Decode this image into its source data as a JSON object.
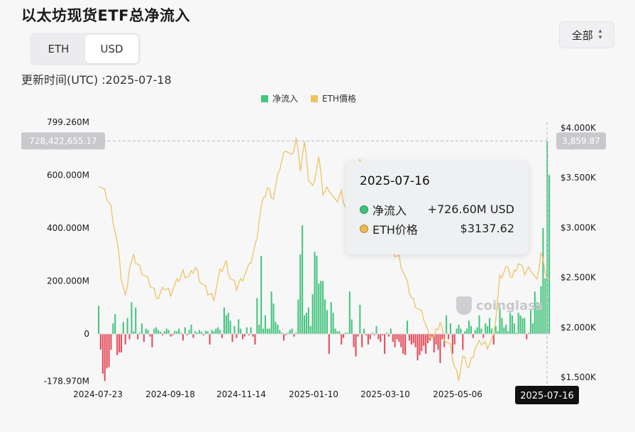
{
  "title": "以太坊现货ETF总净流入",
  "toggle": {
    "options": [
      "ETH",
      "USD"
    ],
    "selected": "USD"
  },
  "updated_text": "更新时间(UTC) :2025-07-18",
  "range_select": {
    "value": "全部",
    "icon": "chevron-up-down-icon"
  },
  "watermark": "coinglass",
  "tooltip": {
    "date": "2025-07-16",
    "rows": [
      {
        "label": "净流入",
        "value": "+726.60M USD",
        "color": "#3ec27a"
      },
      {
        "label": "ETH价格",
        "value": "$3137.62",
        "color": "#eeb94f"
      }
    ]
  },
  "chart_data": {
    "type": "bar",
    "legend": [
      {
        "name": "净流入",
        "color": "#46c57f"
      },
      {
        "name": "ETH價格",
        "color": "#efc262"
      }
    ],
    "left_axis_ticks": [
      "799.260M",
      "600.000M",
      "400.000M",
      "200.000M",
      "0",
      "-178.970M"
    ],
    "left_axis_values": [
      799.26,
      600,
      400,
      200,
      0,
      -178.97
    ],
    "right_axis_ticks": [
      "$4.000K",
      "$3.500K",
      "$3.000K",
      "$2.500K",
      "$2.000K",
      "$1.500K"
    ],
    "right_axis_values": [
      4000,
      3500,
      3000,
      2500,
      2000,
      1500
    ],
    "x_tick_labels": [
      "2024-07-23",
      "2024-09-18",
      "2024-11-14",
      "2025-01-10",
      "2025-03-10",
      "2025-05-06",
      "2025-07-16"
    ],
    "crosshair": {
      "left_value": "728,422,655.17",
      "right_value": "3,859.87",
      "x_label": "2025-07-16"
    },
    "net_flow_musd": [
      106,
      -59,
      -150,
      -178,
      -130,
      -125,
      -60,
      40,
      75,
      -80,
      -70,
      -70,
      45,
      -40,
      60,
      -20,
      120,
      10,
      100,
      -20,
      5,
      40,
      -30,
      20,
      15,
      -10,
      -50,
      20,
      25,
      15,
      8,
      -5,
      10,
      20,
      15,
      -10,
      -5,
      12,
      10,
      20,
      5,
      -25,
      25,
      -5,
      15,
      35,
      -15,
      10,
      5,
      15,
      8,
      -5,
      12,
      10,
      -40,
      15,
      10,
      20,
      25,
      15,
      -15,
      100,
      70,
      80,
      50,
      -30,
      30,
      -15,
      55,
      20,
      -20,
      -10,
      25,
      -5,
      25,
      -10,
      -40,
      135,
      35,
      295,
      20,
      70,
      20,
      20,
      160,
      115,
      45,
      35,
      15,
      5,
      -25,
      -5,
      5,
      15,
      20,
      -10,
      5,
      130,
      300,
      410,
      70,
      80,
      100,
      30,
      150,
      310,
      295,
      190,
      200,
      200,
      130,
      90,
      -75,
      120,
      80,
      20,
      10,
      10,
      -40,
      -15,
      5,
      5,
      160,
      55,
      -50,
      -85,
      -10,
      110,
      -50,
      20,
      -5,
      -40,
      -20,
      5,
      -5,
      30,
      -20,
      -30,
      -5,
      -75,
      5,
      -10,
      20,
      -30,
      -50,
      -20,
      -30,
      -50,
      -75,
      -80,
      50,
      -25,
      -40,
      -35,
      -50,
      -100,
      -80,
      -65,
      -45,
      -75,
      -35,
      -25,
      -15,
      -70,
      -40,
      -60,
      -110,
      -20,
      -50,
      70,
      -20,
      40,
      -75,
      -40,
      20,
      35,
      20,
      -60,
      10,
      20,
      50,
      30,
      -15,
      15,
      25,
      70,
      20,
      -15,
      40,
      30,
      60,
      20,
      -40,
      30,
      10,
      100,
      60,
      25,
      35,
      10,
      80,
      70,
      40,
      5,
      80,
      70,
      60,
      60,
      -20,
      5,
      90,
      40,
      160,
      120,
      110,
      180,
      400,
      210,
      726.6,
      600
    ]
  }
}
